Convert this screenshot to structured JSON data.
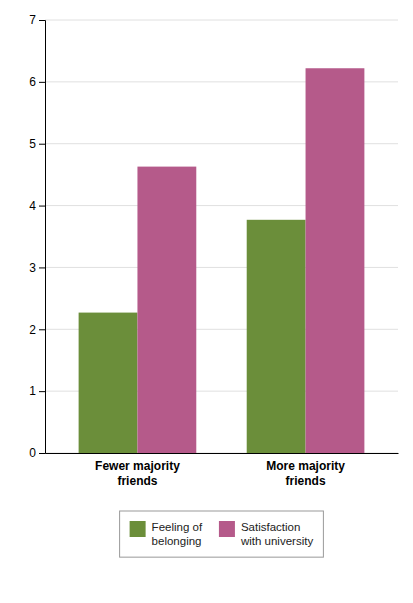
{
  "chart_data": {
    "type": "bar",
    "categories": [
      "Fewer majority\nfriends",
      "More majority\nfriends"
    ],
    "series": [
      {
        "name": "Feeling of\nbelonging",
        "color": "#6b8e3a",
        "values": [
          2.27,
          3.77
        ]
      },
      {
        "name": "Satisfaction\nwith university",
        "color": "#b55a8a",
        "values": [
          4.63,
          6.22
        ]
      }
    ],
    "ylim": [
      0,
      7
    ],
    "yticks": [
      0,
      1,
      2,
      3,
      4,
      5,
      6,
      7
    ],
    "grid": true,
    "legend": "bottom"
  }
}
